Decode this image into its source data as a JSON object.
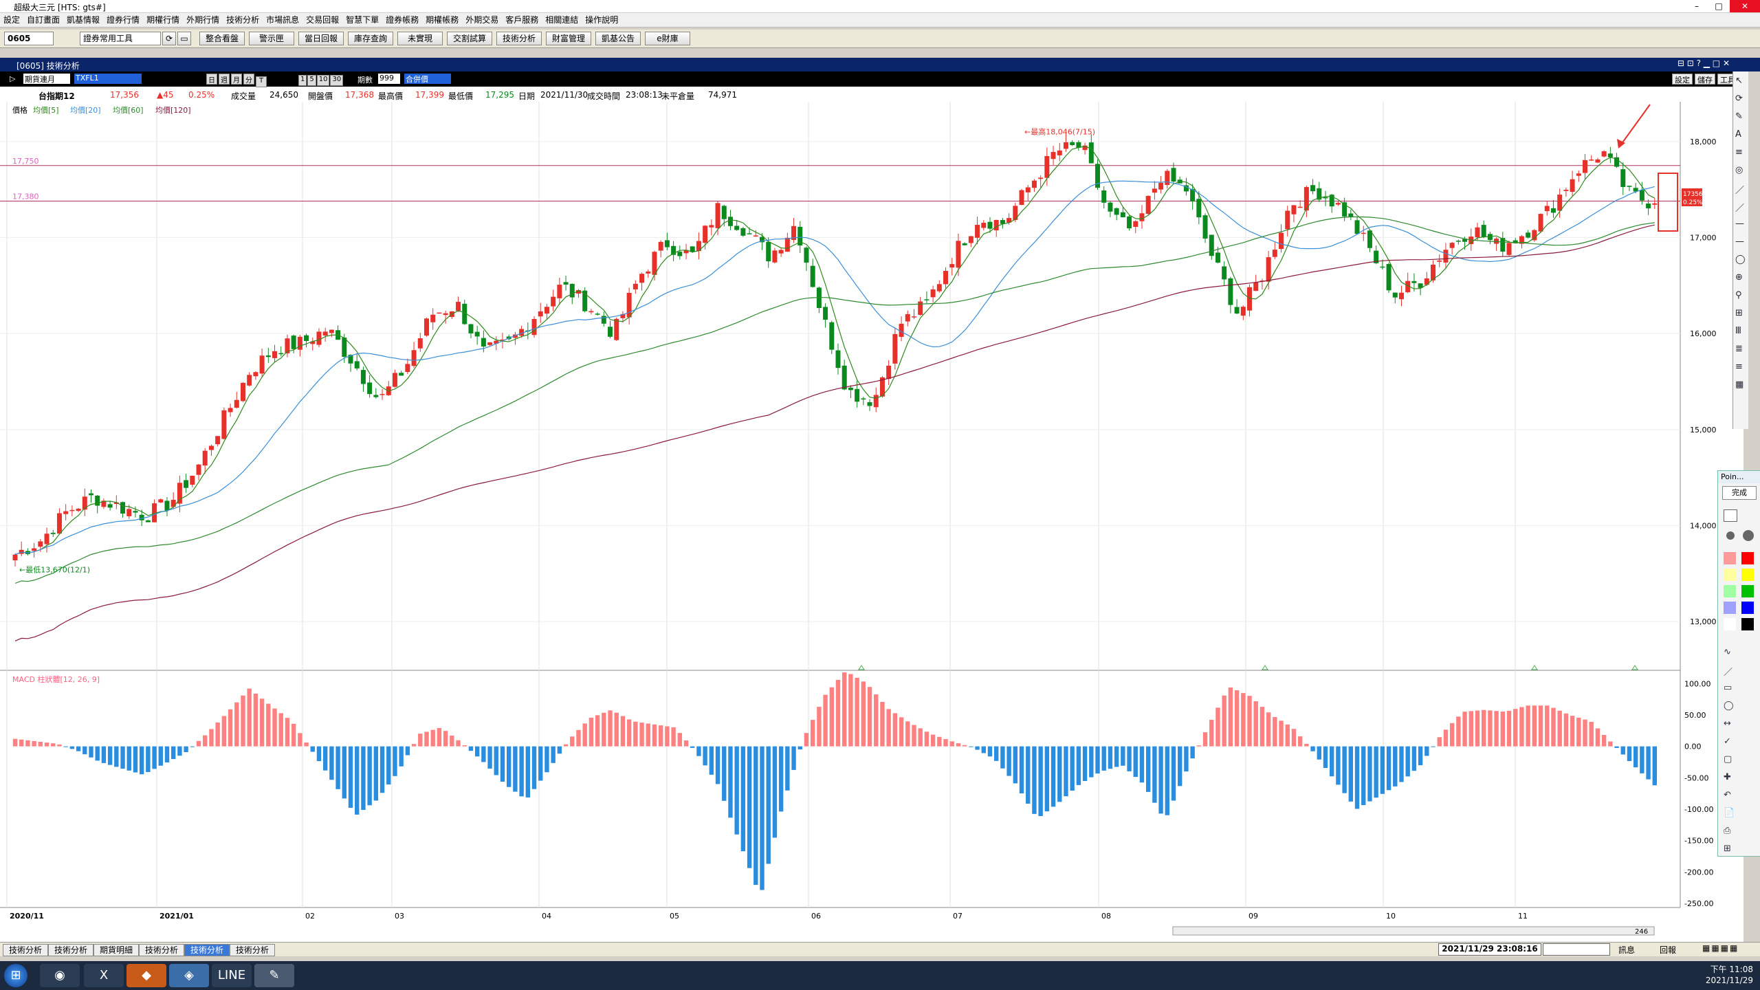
{
  "window": {
    "title": "超級大三元 [HTS: gts#]",
    "min": "–",
    "max": "□",
    "close": "✕"
  },
  "menu": [
    "設定",
    "自訂畫面",
    "凱基情報",
    "證券行情",
    "期權行情",
    "外期行情",
    "技術分析",
    "市場訊息",
    "交易回報",
    "智慧下單",
    "證券帳務",
    "期權帳務",
    "外期交易",
    "客戶服務",
    "相關連結",
    "操作說明"
  ],
  "toolbar": {
    "code": "0605",
    "tools_select": "證券常用工具",
    "buttons": [
      "整合看盤",
      "警示匣",
      "當日回報",
      "庫存查詢",
      "未實現",
      "交割試算",
      "技術分析",
      "財富管理",
      "凱基公告",
      "e財庫"
    ]
  },
  "subwindow": {
    "title": "[0605] 技術分析"
  },
  "controls": {
    "contract": "期貨連月",
    "symbol": "TXFL1",
    "periods": [
      "日",
      "週",
      "月",
      "分",
      "T"
    ],
    "intervals": [
      "1",
      "5",
      "10",
      "30"
    ],
    "count_label": "期數",
    "count": "999",
    "merge": "合併價",
    "right_buttons": [
      "設定",
      "儲存",
      "工具"
    ]
  },
  "info": {
    "name": "台指期12",
    "price": "17,356",
    "change": "▲45",
    "pct": "0.25%",
    "vol_label": "成交量",
    "vol": "24,650",
    "open_label": "開盤價",
    "open": "17,368",
    "high_label": "最高價",
    "high": "17,399",
    "low_label": "最低價",
    "low": "17,295",
    "date_label": "日期",
    "date": "2021/11/30",
    "time_label": "成交時間",
    "time": "23:08:13",
    "oi_label": "未平倉量",
    "oi": "74,971"
  },
  "legend": {
    "price": "價格",
    "ma5": "均價[5]",
    "ma20": "均價[20]",
    "ma60": "均價[60]",
    "ma120": "均價[120]"
  },
  "colors": {
    "up": "#e8302a",
    "down": "#0a8a1e",
    "ma5": "#2f8a1c",
    "ma20": "#3a8fd8",
    "ma60": "#2d8a2d",
    "ma120": "#8b1a3a",
    "macd_up": "#ff8080",
    "macd_down": "#2a8ee0"
  },
  "annotations": {
    "hline1": "17,750",
    "hline2": "17,380",
    "high_note": "←最高18,046(7/15)",
    "low_note": "←最低13,670(12/1)",
    "last_price": "17356",
    "last_pct": "0.25%"
  },
  "macd": {
    "label": "MACD 柱狀體[12, 26, 9]"
  },
  "tabs": [
    "技術分析",
    "技術分析",
    "期貨明細",
    "技術分析",
    "技術分析",
    "技術分析"
  ],
  "active_tab": 4,
  "status": {
    "datetime": "2021/11/29 23:08:16",
    "news": "訊息",
    "back": "回報",
    "zoom": "246"
  },
  "clock": {
    "time": "下午 11:08",
    "date": "2021/11/29"
  },
  "popup": {
    "title": "Poin...",
    "done": "完成"
  },
  "chart_data": {
    "type": "candlestick",
    "price_axis": {
      "ticks": [
        13000,
        14000,
        15000,
        16000,
        17000,
        18000
      ],
      "labels": [
        "13,000",
        "14,000",
        "15,000",
        "16,000",
        "17,000",
        "18,000"
      ],
      "range": [
        12500,
        18400
      ]
    },
    "macd_axis": {
      "ticks": [
        100,
        50,
        0,
        -50,
        -100,
        -150,
        -200,
        -250
      ],
      "labels": [
        "100.00",
        "50.00",
        "0.00",
        "-50.00",
        "-100.00",
        "-150.00",
        "-200.00",
        "-250.00"
      ],
      "range": [
        -250,
        120
      ]
    },
    "months": [
      "2020/11",
      "2021/01",
      "02",
      "03",
      "04",
      "05",
      "06",
      "07",
      "08",
      "09",
      "10",
      "11"
    ],
    "close_path": [
      13700,
      13850,
      14150,
      14300,
      14200,
      14100,
      14250,
      14600,
      15100,
      15600,
      15850,
      15900,
      16050,
      15700,
      15300,
      15650,
      16200,
      16300,
      15800,
      15900,
      16200,
      16500,
      16300,
      16000,
      16600,
      16950,
      16800,
      17300,
      17100,
      16800,
      17150,
      16200,
      15400,
      15300,
      16100,
      16300,
      16800,
      17200,
      17150,
      17550,
      17900,
      17950,
      17250,
      17050,
      17650,
      17500,
      16800,
      16200,
      16650,
      17350,
      17500,
      17300,
      16900,
      16400,
      16550,
      16900,
      17100,
      16900,
      17050,
      17300,
      17700,
      17900,
      17450,
      17356
    ],
    "macd": [
      12,
      8,
      4,
      -8,
      -25,
      -35,
      -45,
      -28,
      -10,
      20,
      55,
      92,
      65,
      40,
      -10,
      -60,
      -110,
      -85,
      -40,
      20,
      30,
      5,
      -25,
      -60,
      -85,
      -40,
      10,
      45,
      58,
      40,
      35,
      30,
      -10,
      -60,
      -150,
      -240,
      -100,
      10,
      80,
      120,
      100,
      60,
      38,
      20,
      8,
      -2,
      -20,
      -60,
      -115,
      -90,
      -60,
      -40,
      -30,
      -60,
      -118,
      -40,
      30,
      95,
      80,
      50,
      30,
      -10,
      -55,
      -100,
      -80,
      -60,
      -30,
      20,
      55,
      58,
      55,
      65,
      65,
      50,
      40,
      5,
      -30,
      -62
    ]
  }
}
